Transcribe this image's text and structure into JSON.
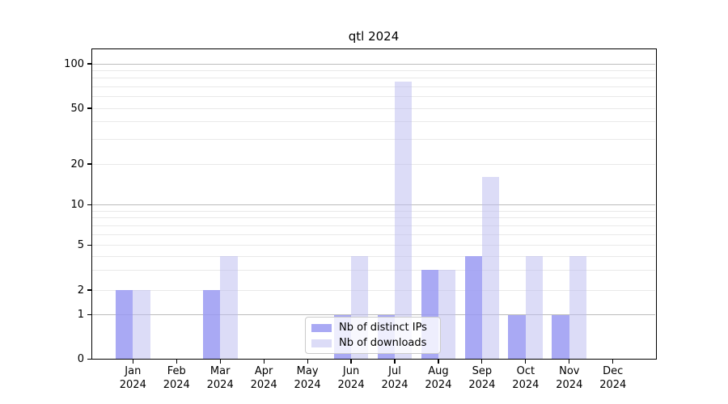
{
  "figure": {
    "title": "qtl 2024"
  },
  "chart_data": {
    "type": "bar",
    "title": "qtl 2024",
    "categories": [
      "Jan 2024",
      "Feb 2024",
      "Mar 2024",
      "Apr 2024",
      "May 2024",
      "Jun 2024",
      "Jul 2024",
      "Aug 2024",
      "Sep 2024",
      "Oct 2024",
      "Nov 2024",
      "Dec 2024"
    ],
    "series": [
      {
        "name": "Nb of distinct IPs",
        "color": "#a9a9f4",
        "values": [
          2,
          0,
          2,
          0,
          0,
          1,
          1,
          3,
          4,
          1,
          1,
          0
        ]
      },
      {
        "name": "Nb of downloads",
        "color": "#dcdcf7",
        "values": [
          2,
          0,
          4,
          0,
          0,
          4,
          76,
          3,
          16,
          4,
          4,
          0
        ]
      }
    ],
    "yscale": "log-like",
    "ylim": [
      0,
      130
    ],
    "yticks": [
      0,
      1,
      2,
      5,
      10,
      20,
      50,
      100
    ],
    "major_gridlines": [
      1,
      10,
      100
    ],
    "minor_gridlines": [
      2,
      3,
      4,
      5,
      6,
      7,
      8,
      9,
      20,
      30,
      40,
      50,
      60,
      70,
      80,
      90
    ],
    "grid": "horizontal",
    "legend_position": "lower center",
    "xlabel": "",
    "ylabel": ""
  },
  "legend": {
    "items": [
      {
        "label": "Nb of distinct IPs"
      },
      {
        "label": "Nb of downloads"
      }
    ]
  },
  "colors": {
    "bar_distinct_ips": "#a9a9f4",
    "bar_downloads": "#dcdcf7",
    "grid_minor": "#e9e9e9",
    "grid_major": "#bcbcbc",
    "axis": "#000000",
    "background": "#ffffff"
  }
}
